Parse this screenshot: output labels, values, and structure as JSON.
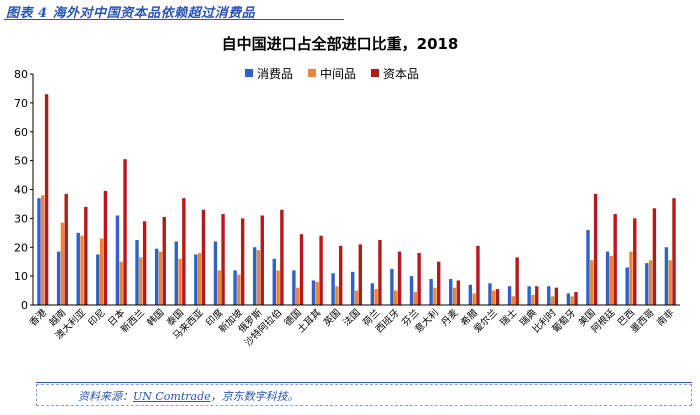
{
  "figure_caption": "图表 4 海外对中国资本品依赖超过消费品",
  "source": {
    "prefix": "资料来源：",
    "org": "UN Comtrade",
    "suffix": "，京东数字科技。"
  },
  "colors": {
    "consumer": "#2e62c8",
    "intermediate": "#e8873a",
    "capital": "#b51a1a"
  },
  "chart_data": {
    "type": "bar",
    "title": "自中国进口占全部进口比重，2018",
    "xlabel": "",
    "ylabel": "",
    "ylim": [
      0,
      80
    ],
    "yticks": [
      0,
      10,
      20,
      30,
      40,
      50,
      60,
      70,
      80
    ],
    "grid": false,
    "legend_position": "top",
    "categories": [
      "香港",
      "越南",
      "澳大利亚",
      "印尼",
      "日本",
      "新西兰",
      "韩国",
      "泰国",
      "马来西亚",
      "印度",
      "新加坡",
      "俄罗斯",
      "沙特阿拉伯",
      "德国",
      "土耳其",
      "英国",
      "法国",
      "荷兰",
      "西班牙",
      "芬兰",
      "意大利",
      "丹麦",
      "希腊",
      "爱尔兰",
      "瑞士",
      "瑞典",
      "比利时",
      "葡萄牙",
      "美国",
      "阿根廷",
      "巴西",
      "墨西哥",
      "南非"
    ],
    "series": [
      {
        "name": "消费品",
        "values": [
          37,
          18.5,
          25,
          17.5,
          31,
          22.5,
          19.5,
          22,
          17.5,
          22,
          12,
          20,
          16,
          12,
          8.5,
          11,
          11.5,
          7.5,
          12.5,
          10,
          9,
          9,
          7,
          7.5,
          6.5,
          6.5,
          6.5,
          4,
          26,
          18.5,
          13,
          14.5,
          20
        ]
      },
      {
        "name": "中间品",
        "values": [
          38,
          28.5,
          24,
          23,
          15,
          16.5,
          18.5,
          16,
          18,
          12,
          10.5,
          19,
          12,
          6,
          8,
          6.5,
          5,
          5.5,
          5,
          4.5,
          6,
          6,
          4,
          5,
          3,
          3.5,
          3,
          3,
          15.5,
          17,
          18.5,
          15.5,
          15.5
        ]
      },
      {
        "name": "资本品",
        "values": [
          73,
          38.5,
          34,
          39.5,
          50.5,
          29,
          30.5,
          37,
          33,
          31.5,
          30,
          31,
          33,
          24.5,
          24,
          20.5,
          21,
          22.5,
          18.5,
          18,
          15,
          8.5,
          20.5,
          5.5,
          16.5,
          6.5,
          6,
          4.5,
          38.5,
          31.5,
          30,
          33.5,
          37
        ]
      }
    ]
  }
}
